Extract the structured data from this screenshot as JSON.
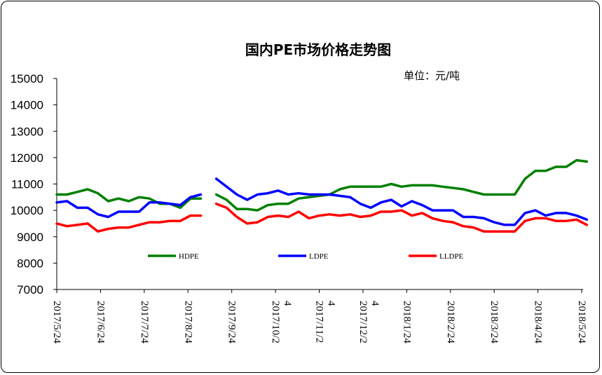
{
  "chart_data": {
    "type": "line",
    "title": "国内PE市场价格走势图",
    "unit_label": "单位：元/吨",
    "ylim": [
      7000,
      15000
    ],
    "yticks": [
      7000,
      8000,
      9000,
      10000,
      11000,
      12000,
      13000,
      14000,
      15000
    ],
    "x_tick_labels": [
      [
        "2017/5/24"
      ],
      [
        "2017/6/24"
      ],
      [
        "2017/7/24"
      ],
      [
        "2017/8/24"
      ],
      [
        "2017/9/24"
      ],
      [
        "2017/10/2",
        "4"
      ],
      [
        "2017/11/2",
        "4"
      ],
      [
        "2017/12/2",
        "4"
      ],
      [
        "2018/1/24"
      ],
      [
        "2018/2/24"
      ],
      [
        "2018/3/24"
      ],
      [
        "2018/4/24"
      ],
      [
        "2018/5/24"
      ]
    ],
    "gap_after_index": 14,
    "grid": false,
    "legend_position": "bottom-inside",
    "series": [
      {
        "name": "HDPE",
        "color": "#008000",
        "values": [
          10600,
          10600,
          10700,
          10800,
          10650,
          10350,
          10450,
          10350,
          10500,
          10450,
          10250,
          10250,
          10100,
          10450,
          10450,
          10600,
          10400,
          10050,
          10050,
          10000,
          10200,
          10250,
          10250,
          10450,
          10500,
          10550,
          10600,
          10800,
          10900,
          10900,
          10900,
          10900,
          11000,
          10900,
          10950,
          10950,
          10950,
          10900,
          10850,
          10800,
          10700,
          10600,
          10600,
          10600,
          10600,
          11200,
          11500,
          11500,
          11650,
          11650,
          11900,
          11850
        ]
      },
      {
        "name": "LDPE",
        "color": "#0000ff",
        "values": [
          10300,
          10350,
          10100,
          10100,
          9850,
          9750,
          9950,
          9950,
          9950,
          10300,
          10300,
          10250,
          10200,
          10500,
          10600,
          11200,
          10900,
          10600,
          10400,
          10600,
          10650,
          10750,
          10600,
          10650,
          10600,
          10600,
          10600,
          10550,
          10500,
          10250,
          10100,
          10300,
          10400,
          10150,
          10350,
          10200,
          10000,
          10000,
          10000,
          9750,
          9750,
          9700,
          9550,
          9450,
          9450,
          9900,
          10000,
          9800,
          9900,
          9900,
          9800,
          9650
        ]
      },
      {
        "name": "LLDPE",
        "color": "#ff0000",
        "values": [
          9500,
          9400,
          9450,
          9500,
          9200,
          9300,
          9350,
          9350,
          9450,
          9550,
          9550,
          9600,
          9600,
          9800,
          9800,
          10250,
          10100,
          9750,
          9500,
          9550,
          9750,
          9800,
          9750,
          9950,
          9700,
          9800,
          9850,
          9800,
          9850,
          9750,
          9800,
          9950,
          9950,
          10000,
          9800,
          9900,
          9700,
          9600,
          9550,
          9400,
          9350,
          9200,
          9200,
          9200,
          9200,
          9600,
          9700,
          9700,
          9600,
          9600,
          9650,
          9450
        ]
      }
    ]
  }
}
